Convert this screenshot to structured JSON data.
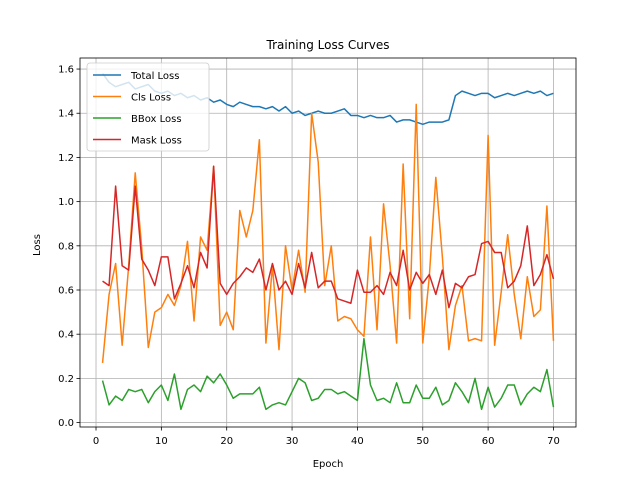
{
  "chart_data": {
    "type": "line",
    "title": "Training Loss Curves",
    "xlabel": "Epoch",
    "ylabel": "Loss",
    "xlim": [
      -2.45,
      73.45
    ],
    "ylim": [
      -0.02,
      1.65
    ],
    "xticks": [
      0,
      10,
      20,
      30,
      40,
      50,
      60,
      70
    ],
    "xtick_labels": [
      "0",
      "10",
      "20",
      "30",
      "40",
      "50",
      "60",
      "70"
    ],
    "yticks": [
      0.0,
      0.2,
      0.4,
      0.6,
      0.8,
      1.0,
      1.2,
      1.4,
      1.6
    ],
    "ytick_labels": [
      "0.0",
      "0.2",
      "0.4",
      "0.6",
      "0.8",
      "1.0",
      "1.2",
      "1.4",
      "1.6"
    ],
    "grid": true,
    "legend_position": "top-left",
    "x": [
      1,
      2,
      3,
      4,
      5,
      6,
      7,
      8,
      9,
      10,
      11,
      12,
      13,
      14,
      15,
      16,
      17,
      18,
      19,
      20,
      21,
      22,
      23,
      24,
      25,
      26,
      27,
      28,
      29,
      30,
      31,
      32,
      33,
      34,
      35,
      36,
      37,
      38,
      39,
      40,
      41,
      42,
      43,
      44,
      45,
      46,
      47,
      48,
      49,
      50,
      51,
      52,
      53,
      54,
      55,
      56,
      57,
      58,
      59,
      60,
      61,
      62,
      63,
      64,
      65,
      66,
      67,
      68,
      69,
      70
    ],
    "series": [
      {
        "name": "Total Loss",
        "color": "#1f77b4",
        "values": [
          1.58,
          1.54,
          1.52,
          1.53,
          1.54,
          1.51,
          1.52,
          1.53,
          1.5,
          1.49,
          1.5,
          1.48,
          1.49,
          1.47,
          1.48,
          1.46,
          1.47,
          1.45,
          1.46,
          1.44,
          1.43,
          1.45,
          1.44,
          1.43,
          1.43,
          1.42,
          1.43,
          1.41,
          1.43,
          1.4,
          1.41,
          1.39,
          1.4,
          1.41,
          1.4,
          1.4,
          1.41,
          1.42,
          1.39,
          1.39,
          1.38,
          1.39,
          1.38,
          1.38,
          1.39,
          1.36,
          1.37,
          1.37,
          1.36,
          1.35,
          1.36,
          1.36,
          1.36,
          1.37,
          1.48,
          1.5,
          1.49,
          1.48,
          1.49,
          1.49,
          1.47,
          1.48,
          1.49,
          1.48,
          1.49,
          1.5,
          1.49,
          1.5,
          1.48,
          1.49
        ]
      },
      {
        "name": "Cls Loss",
        "color": "#ff7f0e",
        "values": [
          0.27,
          0.58,
          0.72,
          0.35,
          0.71,
          1.13,
          0.79,
          0.34,
          0.5,
          0.52,
          0.58,
          0.53,
          0.62,
          0.82,
          0.46,
          0.84,
          0.78,
          1.16,
          0.44,
          0.5,
          0.42,
          0.96,
          0.84,
          0.96,
          1.28,
          0.36,
          0.71,
          0.33,
          0.8,
          0.6,
          0.78,
          0.59,
          1.4,
          1.18,
          0.62,
          0.8,
          0.46,
          0.48,
          0.47,
          0.42,
          0.39,
          0.84,
          0.42,
          0.99,
          0.71,
          0.36,
          1.17,
          0.47,
          1.44,
          0.36,
          0.66,
          1.11,
          0.75,
          0.33,
          0.53,
          0.62,
          0.37,
          0.38,
          0.37,
          1.3,
          0.35,
          0.59,
          0.85,
          0.58,
          0.38,
          0.66,
          0.48,
          0.51,
          0.98,
          0.37
        ]
      },
      {
        "name": "BBox Loss",
        "color": "#2ca02c",
        "values": [
          0.19,
          0.08,
          0.12,
          0.1,
          0.15,
          0.14,
          0.15,
          0.09,
          0.14,
          0.17,
          0.1,
          0.22,
          0.06,
          0.15,
          0.17,
          0.14,
          0.21,
          0.18,
          0.22,
          0.17,
          0.11,
          0.13,
          0.13,
          0.13,
          0.16,
          0.06,
          0.08,
          0.09,
          0.08,
          0.14,
          0.2,
          0.18,
          0.1,
          0.11,
          0.15,
          0.15,
          0.13,
          0.14,
          0.12,
          0.1,
          0.38,
          0.17,
          0.1,
          0.11,
          0.09,
          0.18,
          0.09,
          0.09,
          0.17,
          0.11,
          0.11,
          0.16,
          0.08,
          0.1,
          0.18,
          0.14,
          0.09,
          0.2,
          0.06,
          0.16,
          0.07,
          0.11,
          0.17,
          0.17,
          0.08,
          0.13,
          0.16,
          0.14,
          0.24,
          0.07
        ]
      },
      {
        "name": "Mask Loss",
        "color": "#d62728",
        "values": [
          0.64,
          0.62,
          1.07,
          0.71,
          0.69,
          1.07,
          0.74,
          0.69,
          0.62,
          0.75,
          0.75,
          0.56,
          0.63,
          0.71,
          0.61,
          0.77,
          0.7,
          1.16,
          0.63,
          0.58,
          0.63,
          0.66,
          0.7,
          0.68,
          0.74,
          0.6,
          0.72,
          0.6,
          0.64,
          0.58,
          0.72,
          0.61,
          0.77,
          0.61,
          0.64,
          0.64,
          0.56,
          0.55,
          0.54,
          0.69,
          0.59,
          0.59,
          0.62,
          0.58,
          0.68,
          0.62,
          0.78,
          0.6,
          0.68,
          0.63,
          0.67,
          0.58,
          0.69,
          0.52,
          0.63,
          0.61,
          0.66,
          0.67,
          0.81,
          0.82,
          0.77,
          0.77,
          0.61,
          0.64,
          0.71,
          0.89,
          0.62,
          0.67,
          0.76,
          0.65
        ]
      }
    ]
  }
}
